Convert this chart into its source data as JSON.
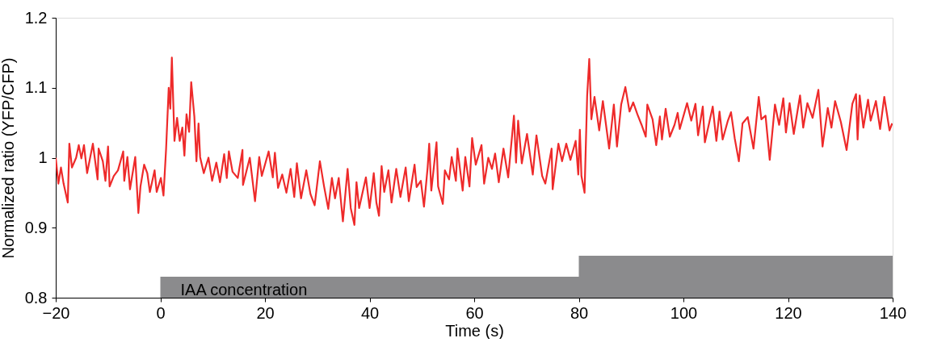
{
  "chart_data": {
    "type": "line",
    "xlabel": "Time (s)",
    "ylabel": "Normalized ratio (YFP/CFP)",
    "xlim": [
      -20,
      140
    ],
    "xticks": [
      -20,
      0,
      20,
      40,
      60,
      80,
      100,
      120,
      140
    ],
    "ylim": [
      0.8,
      1.2
    ],
    "yticks": [
      0.8,
      0.9,
      1,
      1.1,
      1.2
    ],
    "series": [
      {
        "type": "area",
        "name": "IAA concentration",
        "color": "#8b8b8d",
        "x": [
          0,
          80,
          80,
          140
        ],
        "values": [
          0.83,
          0.83,
          0.86,
          0.86
        ]
      },
      {
        "color": "#ee2a2a",
        "x": [
          -20,
          -19.5,
          -19,
          -18.5,
          -17.7,
          -17.4,
          -16.9,
          -16.1,
          -15.6,
          -15.1,
          -14.6,
          -14,
          -12.9,
          -12,
          -11.8,
          -11,
          -10.5,
          -10,
          -9.7,
          -8.9,
          -8.1,
          -7.1,
          -6.9,
          -6.3,
          -5.8,
          -4.8,
          -4.2,
          -3.8,
          -3.1,
          -2.5,
          -2,
          -1.1,
          -0.7,
          0.1,
          0.6,
          1.1,
          1.6,
          1.9,
          2.2,
          2.7,
          3.2,
          3.7,
          4.2,
          4.6,
          5,
          5.5,
          5.9,
          6.5,
          6.9,
          7.3,
          7.6,
          8.3,
          9.2,
          9.9,
          10.7,
          11.4,
          12.2,
          12.7,
          13.1,
          13.8,
          14.8,
          15.7,
          15.8,
          17.1,
          18.1,
          18.9,
          19.4,
          20.7,
          21.5,
          21.9,
          22.5,
          23.3,
          24.1,
          24.9,
          25.6,
          26.1,
          26.9,
          27.9,
          28.7,
          29.5,
          30.5,
          31.3,
          32.1,
          32.8,
          33.4,
          34.1,
          34.9,
          35.8,
          36.4,
          37.1,
          37.5,
          38,
          39.3,
          40,
          40.8,
          41.3,
          41.8,
          42.3,
          42.8,
          43.6,
          44.2,
          45.1,
          45.9,
          46.9,
          47.5,
          48.6,
          49,
          49.8,
          50.4,
          51.1,
          51.4,
          51.8,
          52.8,
          53.1,
          54,
          54.4,
          55.2,
          55.7,
          56.5,
          56.8,
          57.8,
          58.3,
          59.1,
          59.6,
          60.3,
          61.4,
          61.9,
          62.7,
          63.4,
          64,
          64.7,
          65.6,
          66.5,
          67.6,
          68,
          68.4,
          69.1,
          70.1,
          71.2,
          71.9,
          73,
          73.6,
          74.8,
          75,
          76.1,
          76.8,
          77.6,
          78.4,
          79.4,
          79.9,
          80.2,
          80.5,
          81.1,
          81.6,
          82,
          82.4,
          83,
          83.9,
          84.6,
          85.8,
          86.7,
          87.3,
          88.1,
          88.9,
          89.7,
          90.4,
          91.2,
          92,
          92.8,
          93.1,
          94.1,
          94.8,
          95.5,
          95.9,
          96.6,
          97.4,
          98.3,
          98.9,
          99.3,
          100.7,
          101.5,
          102.3,
          102.8,
          103.7,
          104.1,
          104.9,
          105.6,
          106.3,
          106.9,
          107.5,
          108.5,
          109.1,
          109.8,
          110.6,
          111.3,
          112.3,
          113.4,
          114.4,
          114.9,
          115.7,
          116.5,
          117.5,
          118.3,
          119.1,
          119.6,
          120.3,
          121.1,
          122.3,
          122.9,
          123.7,
          124.7,
          125.8,
          126.6,
          127.6,
          128.3,
          129,
          130.1,
          131.2,
          132.3,
          133,
          133.3,
          133.7,
          134.4,
          135.3,
          135.8,
          136.8,
          137.6,
          138.4,
          139.4,
          139.9
        ],
        "values": [
          1.0,
          0.963,
          0.986,
          0.963,
          0.936,
          1.02,
          0.986,
          1.0,
          1.018,
          0.999,
          1.018,
          0.978,
          1.02,
          0.969,
          1.013,
          0.995,
          0.967,
          1.016,
          0.959,
          0.974,
          0.982,
          1.009,
          0.967,
          1.001,
          0.955,
          1.001,
          0.921,
          0.959,
          0.99,
          0.978,
          0.951,
          0.982,
          0.951,
          0.971,
          0.946,
          1.013,
          1.1,
          1.07,
          1.143,
          1.024,
          1.057,
          1.024,
          1.043,
          1.003,
          1.062,
          1.037,
          1.108,
          1.059,
          0.995,
          1.049,
          1.001,
          0.978,
          1.0,
          0.967,
          0.993,
          0.965,
          1.005,
          0.971,
          1.009,
          0.98,
          0.971,
          1.011,
          0.961,
          1.0,
          0.938,
          1.001,
          0.974,
          1.009,
          0.972,
          1.007,
          0.957,
          0.976,
          0.95,
          0.984,
          0.944,
          0.992,
          0.942,
          0.982,
          0.948,
          0.932,
          0.995,
          0.959,
          0.927,
          0.971,
          0.942,
          0.971,
          0.909,
          0.984,
          0.928,
          0.904,
          0.965,
          0.928,
          0.972,
          0.928,
          0.978,
          0.936,
          0.917,
          0.988,
          0.951,
          0.982,
          0.936,
          0.984,
          0.944,
          0.986,
          0.938,
          0.99,
          0.958,
          0.967,
          0.93,
          0.986,
          1.02,
          0.953,
          1.022,
          0.959,
          0.934,
          0.982,
          0.969,
          1.001,
          0.967,
          1.013,
          0.953,
          1.001,
          0.959,
          1.028,
          0.99,
          1.018,
          0.963,
          1.0,
          0.984,
          1.006,
          0.965,
          1.013,
          0.972,
          1.06,
          0.993,
          1.053,
          0.992,
          1.034,
          0.976,
          1.032,
          0.974,
          0.963,
          1.013,
          0.955,
          1.02,
          0.995,
          1.02,
          0.997,
          1.024,
          0.976,
          1.04,
          0.974,
          0.95,
          1.089,
          1.141,
          1.055,
          1.087,
          1.039,
          1.081,
          1.013,
          1.076,
          1.016,
          1.076,
          1.101,
          1.066,
          1.079,
          1.062,
          1.047,
          1.03,
          1.076,
          1.055,
          1.018,
          1.059,
          1.026,
          1.07,
          1.03,
          1.047,
          1.064,
          1.041,
          1.078,
          1.053,
          1.077,
          1.032,
          1.073,
          1.022,
          1.049,
          1.073,
          1.024,
          1.066,
          1.026,
          1.053,
          1.065,
          1.028,
          0.995,
          1.049,
          1.058,
          1.013,
          1.087,
          1.055,
          1.06,
          0.997,
          1.076,
          1.047,
          1.085,
          1.036,
          1.078,
          1.034,
          1.089,
          1.043,
          1.078,
          1.057,
          1.097,
          1.016,
          1.071,
          1.043,
          1.081,
          1.051,
          1.011,
          1.077,
          1.091,
          1.026,
          1.089,
          1.043,
          1.083,
          1.053,
          1.081,
          1.041,
          1.087,
          1.039,
          1.049
        ]
      }
    ]
  }
}
